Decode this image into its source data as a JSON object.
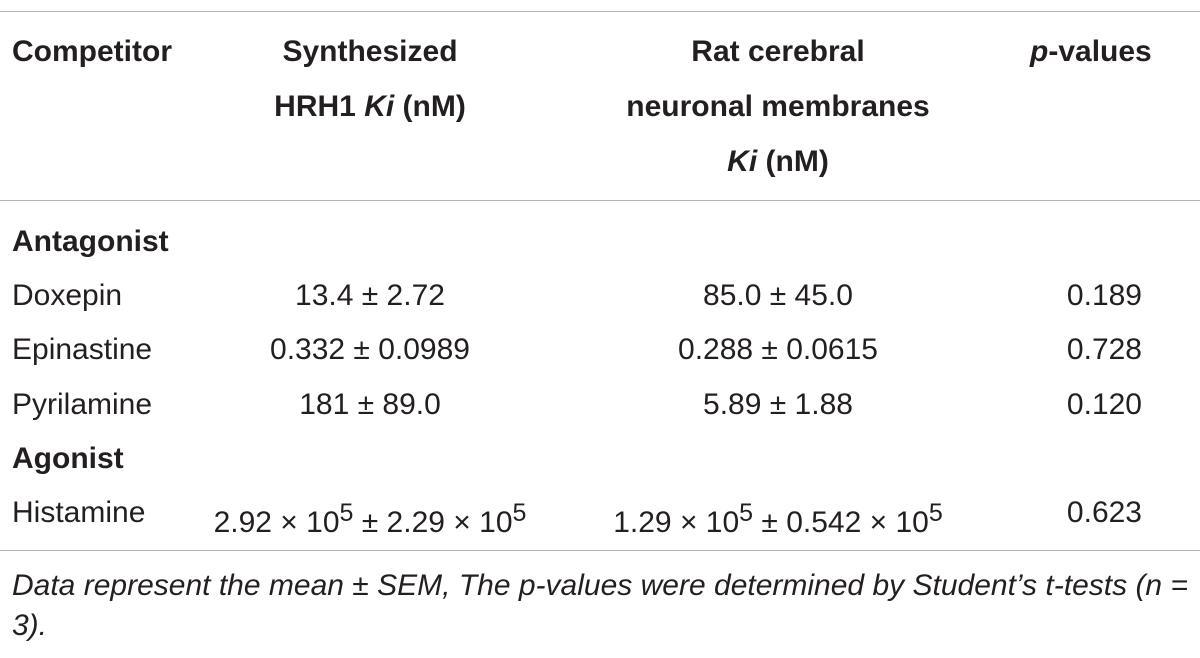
{
  "table": {
    "headers": {
      "competitor": "Competitor",
      "col2_line1": "Synthesized",
      "col2_line2_prefix": "HRH1 ",
      "col2_line2_italic": "Ki",
      "col2_line2_suffix": " (nM)",
      "col3_line1": "Rat cerebral",
      "col3_line2": "neuronal membranes",
      "col3_line3_italic": "Ki",
      "col3_line3_suffix": " (nM)",
      "pval_italic": "p",
      "pval_suffix": "-values"
    },
    "sections": [
      {
        "label": "Antagonist",
        "rows": [
          {
            "name": "Doxepin",
            "synth": "13.4 ± 2.72",
            "rat": "85.0 ± 45.0",
            "p": "0.189"
          },
          {
            "name": "Epinastine",
            "synth": "0.332 ± 0.0989",
            "rat": "0.288 ± 0.0615",
            "p": "0.728"
          },
          {
            "name": "Pyrilamine",
            "synth": "181 ± 89.0",
            "rat": "5.89 ± 1.88",
            "p": "0.120"
          }
        ]
      },
      {
        "label": "Agonist",
        "rows": [
          {
            "name": "Histamine",
            "synth_a": "2.92 × 10",
            "synth_a_exp": "5",
            "synth_b": " ± 2.29 × 10",
            "synth_b_exp": "5",
            "rat_a": "1.29 × 10",
            "rat_a_exp": "5",
            "rat_b": " ± 0.542 × 10",
            "rat_b_exp": "5",
            "p": "0.623"
          }
        ]
      }
    ]
  },
  "footnote": {
    "line": "Data represent the mean ± SEM, The p-values were determined by Student’s t-tests (n = 3)."
  }
}
